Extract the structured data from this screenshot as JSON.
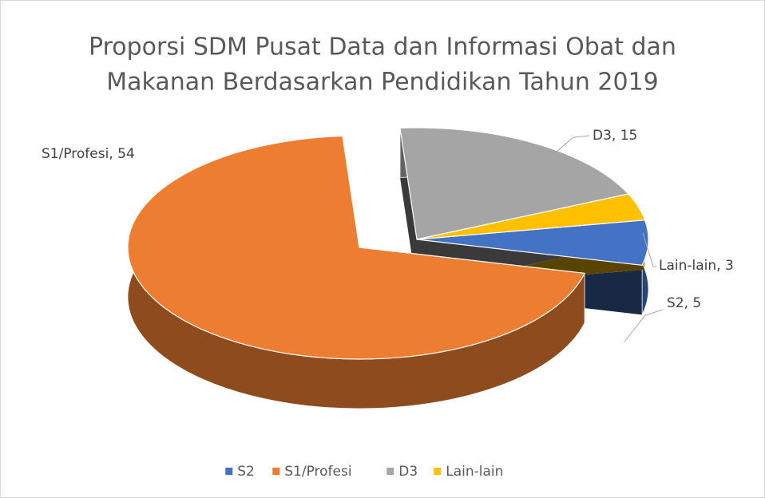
{
  "chart_data": {
    "type": "pie",
    "title": [
      "Proporsi SDM Pusat Data dan Informasi Obat dan",
      "Makanan Berdasarkan Pendidikan Tahun 2019"
    ],
    "categories": [
      "S2",
      "S1/Profesi",
      "D3",
      "Lain-lain"
    ],
    "values": [
      5,
      54,
      15,
      3
    ],
    "value_labels": [
      "S2, 5",
      "S1/Profesi, 54",
      "D3, 15",
      "Lain-lain, 3"
    ],
    "colors": [
      "#4472c4",
      "#ed7d31",
      "#a5a5a5",
      "#ffc000"
    ],
    "legend": "bottom"
  }
}
